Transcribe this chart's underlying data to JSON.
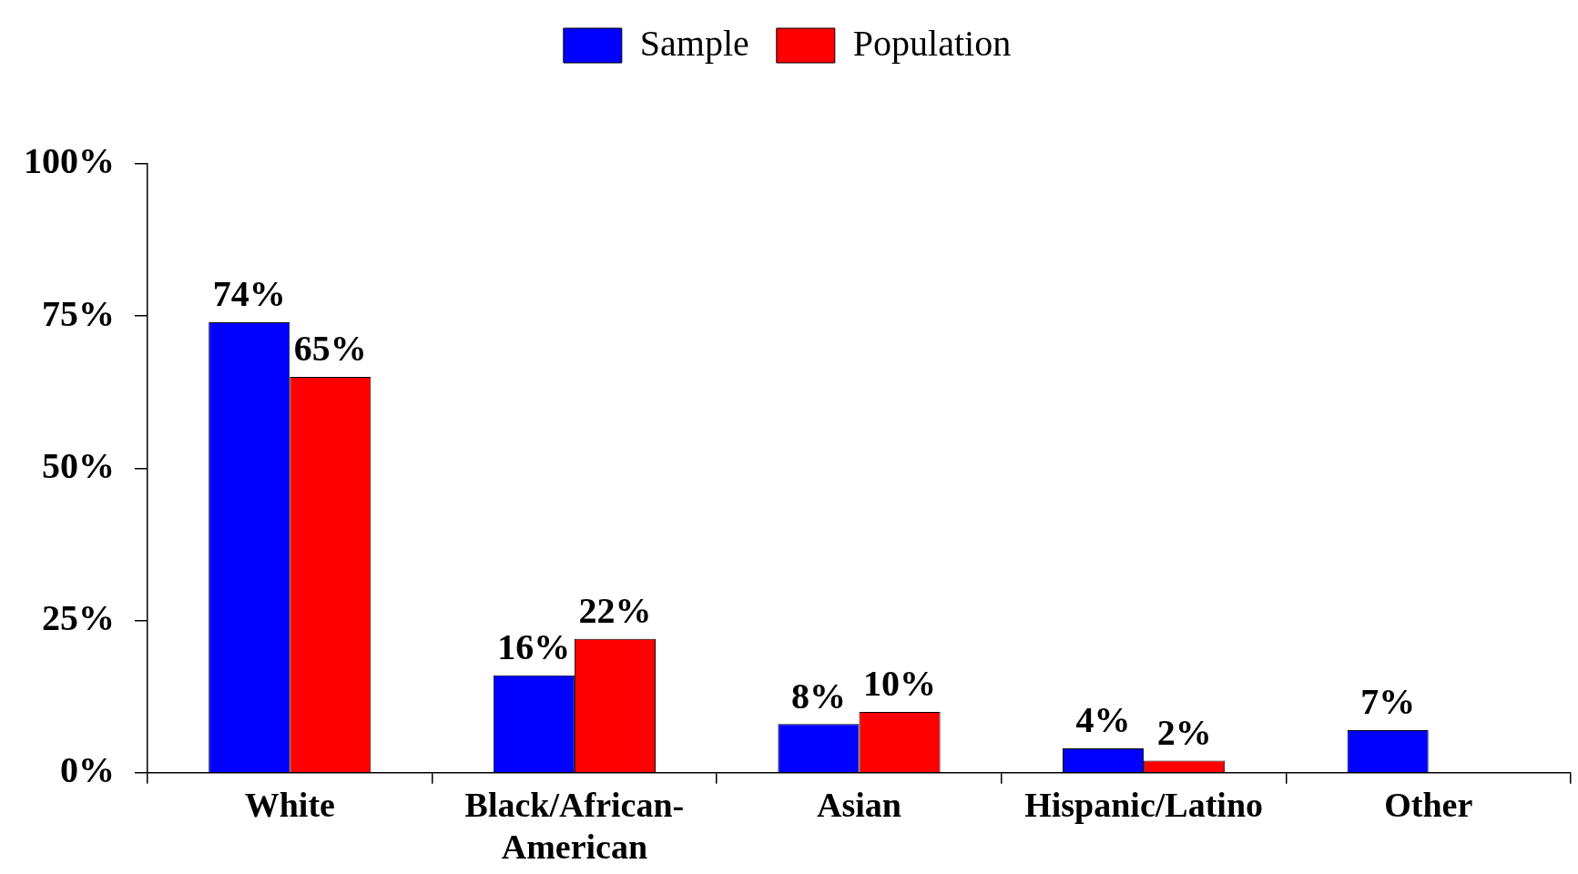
{
  "chart_data": {
    "type": "bar",
    "categories": [
      "White",
      "Black/African-American",
      "Asian",
      "Hispanic/Latino",
      "Other"
    ],
    "series": [
      {
        "name": "Sample",
        "color": "#0000ff",
        "values": [
          74,
          16,
          8,
          4,
          7
        ],
        "value_labels": [
          "74%",
          "16%",
          "8%",
          "4%",
          "7%"
        ]
      },
      {
        "name": "Population",
        "color": "#ff0000",
        "values": [
          65,
          22,
          10,
          2,
          null
        ],
        "value_labels": [
          "65%",
          "22%",
          "10%",
          "2%",
          null
        ]
      }
    ],
    "ylim": [
      0,
      100
    ],
    "yticks": [
      {
        "value": 0,
        "label": "0%"
      },
      {
        "value": 25,
        "label": "25%"
      },
      {
        "value": 50,
        "label": "50%"
      },
      {
        "value": 75,
        "label": "75%"
      },
      {
        "value": 100,
        "label": "100%"
      }
    ],
    "grid": false,
    "legend": "top"
  }
}
